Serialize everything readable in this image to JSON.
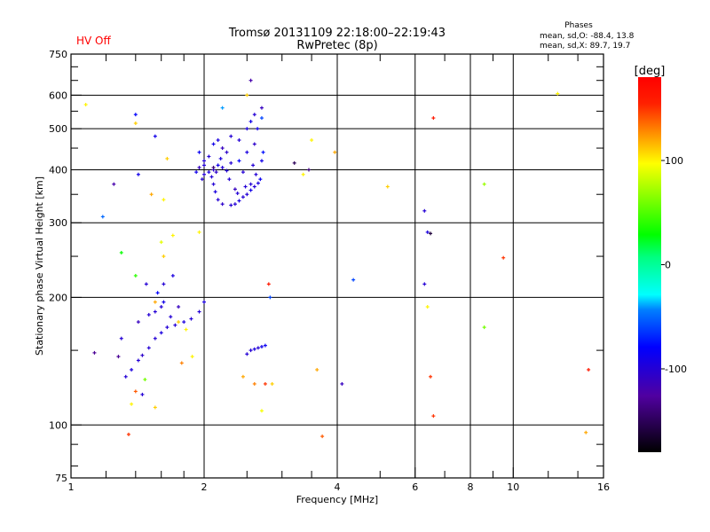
{
  "status": {
    "hv_label": "HV Off",
    "hv_color": "#ff0000"
  },
  "header": {
    "title": "Tromsø 20131109 22:18:00–22:19:43",
    "subtitle": "RwPretec (8p)",
    "stats_title": "Phases",
    "stats_o": "mean, sd,O: -88.4, 13.8",
    "stats_x": "mean, sd,X:  89.7, 19.7"
  },
  "colorbar": {
    "label": "[deg]",
    "range": [
      -180,
      180
    ],
    "ticks": [
      {
        "v": 100,
        "label": "100"
      },
      {
        "v": 0,
        "label": "0"
      },
      {
        "v": -100,
        "label": "-100"
      }
    ]
  },
  "chart_data": {
    "type": "scatter",
    "xlabel": "Frequency [MHz]",
    "ylabel": "Stationary phase Virtual Height [km]",
    "xscale": "log",
    "yscale": "log",
    "xlim": [
      1,
      16
    ],
    "ylim": [
      75,
      750
    ],
    "xticks": [
      {
        "v": 1,
        "label": "1"
      },
      {
        "v": 2,
        "label": "2"
      },
      {
        "v": 4,
        "label": "4"
      },
      {
        "v": 6,
        "label": "6"
      },
      {
        "v": 8,
        "label": "8"
      },
      {
        "v": 10,
        "label": "10"
      },
      {
        "v": 16,
        "label": "16"
      }
    ],
    "yticks": [
      {
        "v": 750,
        "label": "750"
      },
      {
        "v": 600,
        "label": "600"
      },
      {
        "v": 500,
        "label": "500"
      },
      {
        "v": 400,
        "label": "400"
      },
      {
        "v": 300,
        "label": "300"
      },
      {
        "v": 200,
        "label": "200"
      },
      {
        "v": 100,
        "label": "100"
      },
      {
        "v": 75,
        "label": "75"
      }
    ],
    "xgrid": [
      2,
      4,
      6,
      8,
      10
    ],
    "ygrid": [
      100,
      200,
      300,
      400,
      500,
      600
    ],
    "point_fields": [
      "frequency_mhz",
      "height_km",
      "phase_deg"
    ],
    "points": [
      [
        2.0,
        390,
        -100
      ],
      [
        2.05,
        395,
        -95
      ],
      [
        2.1,
        400,
        -105
      ],
      [
        2.15,
        410,
        -90
      ],
      [
        2.05,
        430,
        -100
      ],
      [
        2.2,
        450,
        -110
      ],
      [
        2.15,
        470,
        -95
      ],
      [
        2.3,
        480,
        -100
      ],
      [
        2.25,
        440,
        -105
      ],
      [
        2.1,
        460,
        -90
      ],
      [
        2.0,
        420,
        -100
      ],
      [
        1.95,
        440,
        -85
      ],
      [
        2.4,
        470,
        -100
      ],
      [
        2.5,
        500,
        -95
      ],
      [
        2.6,
        540,
        -100
      ],
      [
        2.55,
        520,
        -90
      ],
      [
        2.6,
        460,
        -105
      ],
      [
        2.2,
        405,
        -100
      ],
      [
        2.1,
        370,
        -100
      ],
      [
        2.12,
        355,
        -95
      ],
      [
        2.15,
        340,
        -100
      ],
      [
        2.2,
        332,
        -105
      ],
      [
        2.3,
        330,
        -100
      ],
      [
        2.35,
        332,
        -100
      ],
      [
        2.4,
        338,
        -95
      ],
      [
        2.45,
        345,
        -100
      ],
      [
        2.5,
        350,
        -100
      ],
      [
        2.55,
        358,
        -90
      ],
      [
        2.6,
        365,
        -100
      ],
      [
        2.65,
        372,
        -95
      ],
      [
        2.68,
        380,
        -85
      ],
      [
        2.62,
        390,
        -100
      ],
      [
        2.55,
        370,
        -100
      ],
      [
        2.35,
        360,
        -110
      ],
      [
        1.98,
        380,
        -100
      ],
      [
        1.92,
        395,
        -90
      ],
      [
        1.95,
        405,
        -110
      ],
      [
        2.3,
        415,
        -100
      ],
      [
        2.4,
        420,
        -80
      ],
      [
        2.7,
        420,
        -90
      ],
      [
        2.08,
        385,
        -100
      ],
      [
        2.13,
        395,
        -105
      ],
      [
        2.25,
        398,
        -100
      ],
      [
        2.5,
        440,
        -95
      ],
      [
        2.45,
        395,
        -100
      ],
      [
        2.58,
        410,
        -100
      ],
      [
        2.64,
        500,
        -90
      ],
      [
        2.72,
        440,
        -75
      ],
      [
        2.0,
        410,
        -100
      ],
      [
        2.18,
        425,
        -95
      ],
      [
        2.28,
        380,
        -100
      ],
      [
        2.38,
        352,
        -100
      ],
      [
        2.48,
        365,
        -100
      ],
      [
        1.33,
        130,
        -100
      ],
      [
        1.37,
        135,
        -95
      ],
      [
        1.42,
        142,
        -100
      ],
      [
        1.45,
        146,
        -105
      ],
      [
        1.5,
        152,
        -100
      ],
      [
        1.55,
        160,
        -100
      ],
      [
        1.6,
        165,
        -95
      ],
      [
        1.65,
        170,
        -100
      ],
      [
        1.72,
        172,
        -100
      ],
      [
        1.8,
        175,
        -95
      ],
      [
        1.87,
        178,
        -100
      ],
      [
        1.95,
        185,
        -100
      ],
      [
        2.0,
        195,
        -95
      ],
      [
        1.55,
        185,
        -100
      ],
      [
        1.6,
        190,
        -100
      ],
      [
        1.62,
        195,
        -90
      ],
      [
        1.5,
        182,
        -100
      ],
      [
        1.57,
        205,
        -80
      ],
      [
        1.68,
        180,
        -100
      ],
      [
        1.75,
        190,
        -110
      ],
      [
        1.62,
        215,
        -100
      ],
      [
        1.7,
        225,
        -95
      ],
      [
        1.48,
        215,
        -100
      ],
      [
        1.42,
        175,
        -110
      ],
      [
        1.3,
        160,
        -100
      ],
      [
        1.28,
        145,
        -130
      ],
      [
        1.45,
        118,
        -100
      ],
      [
        2.55,
        150,
        -100
      ],
      [
        2.6,
        151,
        -95
      ],
      [
        2.65,
        152,
        -100
      ],
      [
        2.7,
        153,
        -90
      ],
      [
        2.75,
        154,
        -85
      ],
      [
        2.5,
        147,
        -100
      ],
      [
        1.08,
        570,
        100
      ],
      [
        1.4,
        515,
        110
      ],
      [
        1.4,
        540,
        -80
      ],
      [
        1.42,
        390,
        -90
      ],
      [
        1.52,
        350,
        120
      ],
      [
        1.62,
        340,
        100
      ],
      [
        1.6,
        270,
        90
      ],
      [
        1.7,
        280,
        100
      ],
      [
        1.62,
        250,
        110
      ],
      [
        1.3,
        255,
        30
      ],
      [
        1.4,
        225,
        40
      ],
      [
        1.55,
        195,
        120
      ],
      [
        1.75,
        175,
        110
      ],
      [
        1.82,
        168,
        100
      ],
      [
        1.88,
        145,
        100
      ],
      [
        1.78,
        140,
        130
      ],
      [
        1.37,
        112,
        100
      ],
      [
        1.55,
        110,
        110
      ],
      [
        1.4,
        120,
        140
      ],
      [
        1.47,
        128,
        60
      ],
      [
        1.35,
        95,
        150
      ],
      [
        2.45,
        130,
        120
      ],
      [
        2.6,
        125,
        130
      ],
      [
        2.7,
        108,
        95
      ],
      [
        2.75,
        125,
        150
      ],
      [
        2.85,
        125,
        110
      ],
      [
        2.8,
        215,
        160
      ],
      [
        2.82,
        200,
        -60
      ],
      [
        1.95,
        285,
        100
      ],
      [
        3.5,
        470,
        100
      ],
      [
        3.95,
        440,
        120
      ],
      [
        3.35,
        390,
        100
      ],
      [
        3.6,
        135,
        120
      ],
      [
        3.7,
        94,
        140
      ],
      [
        4.35,
        220,
        -60
      ],
      [
        4.1,
        125,
        -110
      ],
      [
        5.2,
        365,
        110
      ],
      [
        6.3,
        320,
        -100
      ],
      [
        6.4,
        285,
        -95
      ],
      [
        6.5,
        283,
        -160
      ],
      [
        6.3,
        215,
        -100
      ],
      [
        6.5,
        130,
        150
      ],
      [
        6.6,
        105,
        150
      ],
      [
        6.6,
        530,
        160
      ],
      [
        6.4,
        190,
        100
      ],
      [
        8.6,
        370,
        70
      ],
      [
        8.6,
        170,
        60
      ],
      [
        9.5,
        248,
        150
      ],
      [
        12.6,
        605,
        100
      ],
      [
        14.8,
        135,
        160
      ],
      [
        14.6,
        96,
        120
      ],
      [
        1.18,
        310,
        -50
      ],
      [
        1.25,
        370,
        -120
      ],
      [
        1.13,
        148,
        -130
      ],
      [
        3.2,
        415,
        -150
      ],
      [
        3.45,
        400,
        -140
      ],
      [
        2.55,
        650,
        -120
      ],
      [
        2.5,
        600,
        110
      ],
      [
        2.7,
        560,
        -110
      ],
      [
        2.1,
        405,
        -140
      ],
      [
        2.7,
        530,
        -60
      ],
      [
        1.55,
        480,
        -90
      ],
      [
        1.65,
        425,
        110
      ],
      [
        2.2,
        560,
        -40
      ]
    ]
  }
}
